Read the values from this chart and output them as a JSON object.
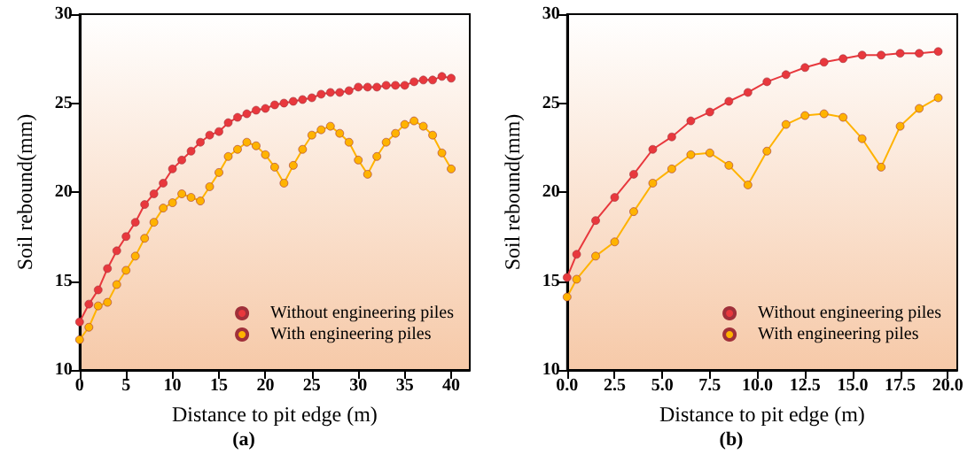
{
  "chart_data": [
    {
      "type": "line",
      "title": "(a)",
      "xlabel": "Distance to pit edge (m)",
      "ylabel": "Soil rebound(mm)",
      "x": [
        0,
        1,
        2,
        3,
        4,
        5,
        6,
        7,
        8,
        9,
        10,
        11,
        12,
        13,
        14,
        15,
        16,
        17,
        18,
        19,
        20,
        21,
        22,
        23,
        24,
        25,
        26,
        27,
        28,
        29,
        30,
        31,
        32,
        33,
        34,
        35,
        36,
        37,
        38,
        39,
        40
      ],
      "series": [
        {
          "name": "Without engineering piles",
          "color": "#e8383d",
          "values": [
            12.7,
            13.7,
            14.5,
            15.7,
            16.7,
            17.5,
            18.3,
            19.3,
            19.9,
            20.5,
            21.3,
            21.8,
            22.3,
            22.8,
            23.2,
            23.4,
            23.9,
            24.2,
            24.4,
            24.6,
            24.7,
            24.9,
            25.0,
            25.1,
            25.2,
            25.3,
            25.5,
            25.6,
            25.6,
            25.7,
            25.9,
            25.9,
            25.9,
            26.0,
            26.0,
            26.0,
            26.2,
            26.3,
            26.3,
            26.5,
            26.4
          ]
        },
        {
          "name": "With engineering piles",
          "color": "#ffb300",
          "values": [
            11.7,
            12.4,
            13.6,
            13.8,
            14.8,
            15.6,
            16.4,
            17.4,
            18.3,
            19.1,
            19.4,
            19.9,
            19.7,
            19.5,
            20.3,
            21.1,
            22.0,
            22.4,
            22.8,
            22.6,
            22.1,
            21.4,
            20.5,
            21.5,
            22.4,
            23.2,
            23.5,
            23.7,
            23.3,
            22.8,
            21.8,
            21.0,
            22.0,
            22.8,
            23.3,
            23.8,
            24.0,
            23.7,
            23.2,
            22.2,
            21.3
          ]
        }
      ],
      "xlim": [
        0,
        42
      ],
      "xticks": [
        0,
        5,
        10,
        15,
        20,
        25,
        30,
        35,
        40
      ],
      "ylim": [
        10,
        30
      ],
      "yticks": [
        10,
        15,
        20,
        25,
        30
      ],
      "legend": "bottom right",
      "marker": "circle",
      "line_style": "solid",
      "grid": false
    },
    {
      "type": "line",
      "title": "(b)",
      "xlabel": "Distance to pit edge (m)",
      "ylabel": "Soil rebound(mm)",
      "x": [
        0,
        0.5,
        1.5,
        2.5,
        3.5,
        4.5,
        5.5,
        6.5,
        7.5,
        8.5,
        9.5,
        10.5,
        11.5,
        12.5,
        13.5,
        14.5,
        15.5,
        16.5,
        17.5,
        18.5,
        19.5
      ],
      "series": [
        {
          "name": "Without engineering piles",
          "color": "#e8383d",
          "values": [
            15.2,
            16.5,
            18.4,
            19.7,
            21.0,
            22.4,
            23.1,
            24.0,
            24.5,
            25.1,
            25.6,
            26.2,
            26.6,
            27.0,
            27.3,
            27.5,
            27.7,
            27.7,
            27.8,
            27.8,
            27.9
          ]
        },
        {
          "name": "With engineering piles",
          "color": "#ffb300",
          "values": [
            14.1,
            15.1,
            16.4,
            17.2,
            18.9,
            20.5,
            21.3,
            22.1,
            22.2,
            21.5,
            20.4,
            22.3,
            23.8,
            24.3,
            24.4,
            24.2,
            23.0,
            21.4,
            23.7,
            24.7,
            25.3
          ]
        }
      ],
      "xlim": [
        0,
        20.5
      ],
      "xticks": [
        {
          "value": 0,
          "label": "0.0"
        },
        {
          "value": 2.5,
          "label": "2.5"
        },
        {
          "value": 5,
          "label": "5.0"
        },
        {
          "value": 7.5,
          "label": "7.5"
        },
        {
          "value": 10,
          "label": "10.0"
        },
        {
          "value": 12.5,
          "label": "12.5"
        },
        {
          "value": 15,
          "label": "15.0"
        },
        {
          "value": 17.5,
          "label": "17.5"
        },
        {
          "value": 20,
          "label": "20.0"
        }
      ],
      "ylim": [
        10,
        30
      ],
      "yticks": [
        10,
        15,
        20,
        25,
        30
      ],
      "legend": "bottom right",
      "marker": "circle",
      "line_style": "solid",
      "grid": false
    }
  ]
}
